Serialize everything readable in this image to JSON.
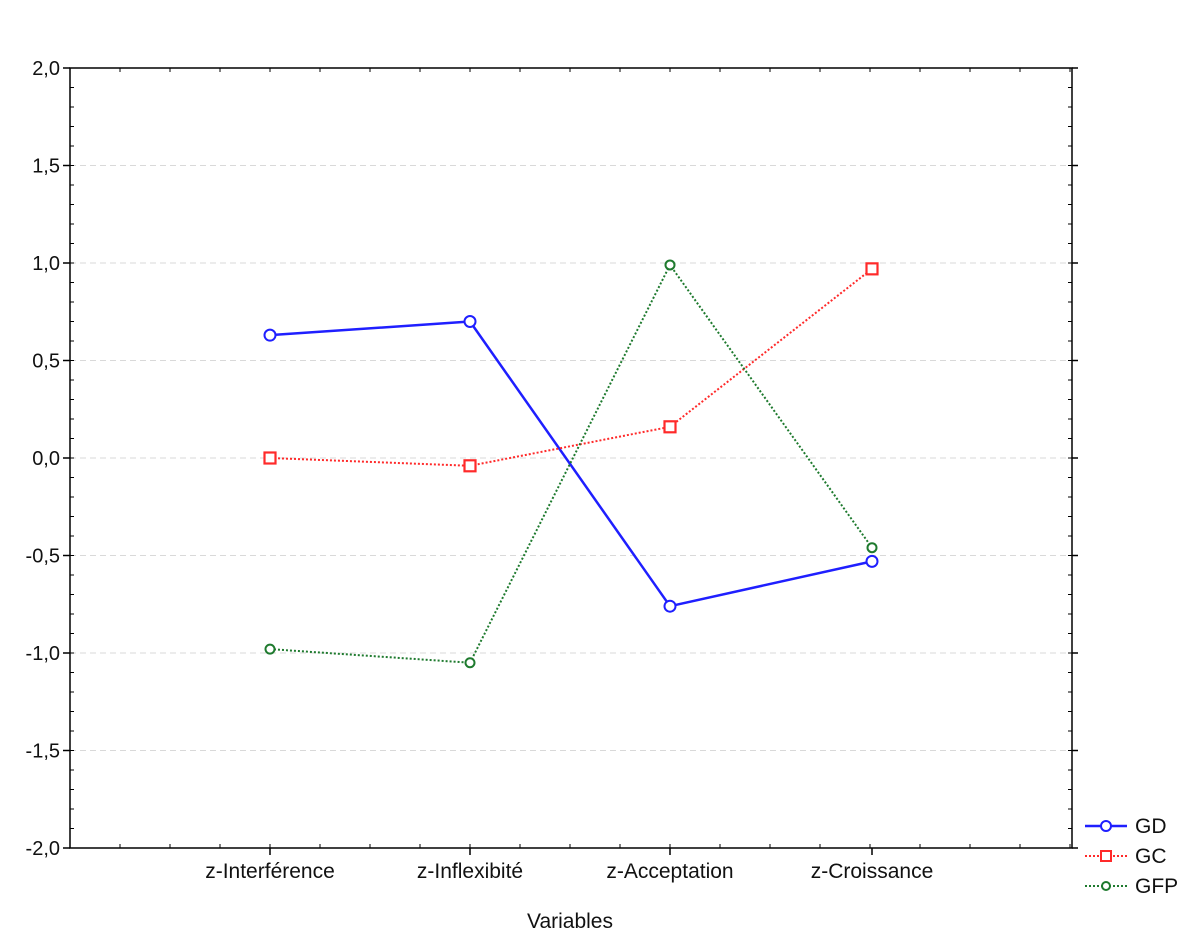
{
  "chart_data": {
    "type": "line",
    "title": "",
    "xlabel": "Variables",
    "ylabel": "",
    "categories": [
      "z-Interférence",
      "z-Inflexibité",
      "z-Acceptation",
      "z-Croissance"
    ],
    "ylim": [
      -2.0,
      2.0
    ],
    "yticks": [
      -2.0,
      -1.5,
      -1.0,
      -0.5,
      0.0,
      0.5,
      1.0,
      1.5,
      2.0
    ],
    "ytick_labels": [
      "-2,0",
      "-1,5",
      "-1,0",
      "-0,5",
      "0,0",
      "0,5",
      "1,0",
      "1,5",
      "2,0"
    ],
    "grid": true,
    "legend_position": "bottom-right",
    "series": [
      {
        "name": "GD",
        "values": [
          0.63,
          0.7,
          -0.76,
          -0.53
        ],
        "color": "#1f1fff",
        "marker": "circle",
        "line_style": "solid"
      },
      {
        "name": "GC",
        "values": [
          0.0,
          -0.04,
          0.16,
          0.97
        ],
        "color": "#ff2a2a",
        "marker": "square",
        "line_style": "dotted"
      },
      {
        "name": "GFP",
        "values": [
          -0.98,
          -1.05,
          0.99,
          -0.46
        ],
        "color": "#1e7a2e",
        "marker": "circle",
        "line_style": "dotted"
      }
    ]
  }
}
